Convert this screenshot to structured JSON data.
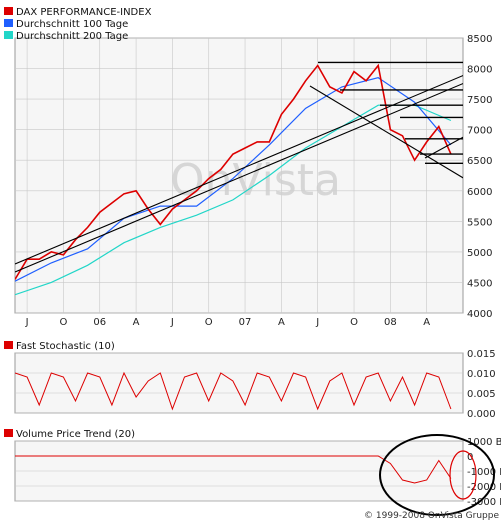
{
  "copyright": "© 1999-2008 OnVista Gruppe",
  "watermark": "OnVista",
  "colors": {
    "price": "#dd0000",
    "ma100": "#1f5fff",
    "ma200": "#22d6c8",
    "trend": "#000000",
    "grid": "#c8c8c8",
    "panel_bg": "#f6f6f6"
  },
  "chart_data": [
    {
      "type": "line",
      "title": "",
      "legend_placement": "top-left",
      "series": [
        {
          "name": "DAX PERFORMANCE-INDEX",
          "color": "#dd0000",
          "x": [
            "2005-06",
            "2005-07",
            "2005-08",
            "2005-09",
            "2005-10",
            "2005-11",
            "2005-12",
            "2006-01",
            "2006-02",
            "2006-03",
            "2006-04",
            "2006-05",
            "2006-06",
            "2006-07",
            "2006-08",
            "2006-09",
            "2006-10",
            "2006-11",
            "2006-12",
            "2007-01",
            "2007-02",
            "2007-03",
            "2007-04",
            "2007-05",
            "2007-06",
            "2007-07",
            "2007-08",
            "2007-09",
            "2007-10",
            "2007-11",
            "2007-12",
            "2008-01",
            "2008-02",
            "2008-03",
            "2008-04",
            "2008-05",
            "2008-06"
          ],
          "values": [
            4550,
            4880,
            4880,
            5000,
            4950,
            5200,
            5400,
            5650,
            5800,
            5950,
            6000,
            5700,
            5450,
            5700,
            5850,
            6000,
            6200,
            6350,
            6600,
            6700,
            6800,
            6800,
            7250,
            7500,
            7800,
            8050,
            7700,
            7600,
            7950,
            7800,
            8050,
            7000,
            6900,
            6500,
            6800,
            7050,
            6600
          ]
        },
        {
          "name": "Durchschnitt 100 Tage",
          "color": "#1f5fff",
          "x": [
            "2005-06",
            "2005-09",
            "2005-12",
            "2006-03",
            "2006-06",
            "2006-09",
            "2006-12",
            "2007-03",
            "2007-06",
            "2007-09",
            "2007-12",
            "2008-03",
            "2008-06"
          ],
          "values": [
            4520,
            4820,
            5050,
            5550,
            5750,
            5750,
            6200,
            6750,
            7350,
            7700,
            7850,
            7450,
            6750
          ]
        },
        {
          "name": "Durchschnitt 200 Tage",
          "color": "#22d6c8",
          "x": [
            "2005-06",
            "2005-09",
            "2005-12",
            "2006-03",
            "2006-06",
            "2006-09",
            "2006-12",
            "2007-03",
            "2007-06",
            "2007-09",
            "2007-12",
            "2008-03",
            "2008-06"
          ],
          "values": [
            4300,
            4500,
            4780,
            5150,
            5400,
            5600,
            5850,
            6250,
            6700,
            7050,
            7400,
            7400,
            7150
          ]
        }
      ],
      "xlabel": "",
      "ylabel": "",
      "x_tick_labels": [
        "J",
        "O",
        "06",
        "A",
        "J",
        "O",
        "07",
        "A",
        "J",
        "O",
        "08",
        "A"
      ],
      "yticks": [
        "8500",
        "8000",
        "7500",
        "7000",
        "6500",
        "6000",
        "5500",
        "5000",
        "4500",
        "4000"
      ],
      "ylim": [
        4000,
        8500
      ],
      "grid": true
    },
    {
      "type": "line",
      "title": "",
      "series": [
        {
          "name": "Fast Stochastic (10)",
          "color": "#dd0000",
          "x": [
            "2005-06",
            "2005-07",
            "2005-08",
            "2005-09",
            "2005-10",
            "2005-11",
            "2005-12",
            "2006-01",
            "2006-02",
            "2006-03",
            "2006-04",
            "2006-05",
            "2006-06",
            "2006-07",
            "2006-08",
            "2006-09",
            "2006-10",
            "2006-11",
            "2006-12",
            "2007-01",
            "2007-02",
            "2007-03",
            "2007-04",
            "2007-05",
            "2007-06",
            "2007-07",
            "2007-08",
            "2007-09",
            "2007-10",
            "2007-11",
            "2007-12",
            "2008-01",
            "2008-02",
            "2008-03",
            "2008-04",
            "2008-05",
            "2008-06"
          ],
          "values": [
            0.01,
            0.009,
            0.002,
            0.01,
            0.009,
            0.003,
            0.01,
            0.009,
            0.002,
            0.01,
            0.004,
            0.008,
            0.01,
            0.001,
            0.009,
            0.01,
            0.003,
            0.01,
            0.008,
            0.002,
            0.01,
            0.009,
            0.003,
            0.01,
            0.009,
            0.001,
            0.008,
            0.01,
            0.002,
            0.009,
            0.01,
            0.003,
            0.009,
            0.002,
            0.01,
            0.009,
            0.001
          ]
        }
      ],
      "yticks": [
        "0.015",
        "0.010",
        "0.005",
        "0.000"
      ],
      "ylim": [
        0,
        0.015
      ],
      "grid": true
    },
    {
      "type": "line",
      "title": "",
      "series": [
        {
          "name": "Volume Price Trend (20)",
          "color": "#dd0000",
          "x": [
            "2005-06",
            "2005-09",
            "2005-12",
            "2006-03",
            "2006-06",
            "2006-09",
            "2006-12",
            "2007-03",
            "2007-06",
            "2007-09",
            "2007-12",
            "2008-01",
            "2008-02",
            "2008-03",
            "2008-04",
            "2008-05",
            "2008-06"
          ],
          "values": [
            0,
            0,
            0,
            0,
            0,
            0,
            0,
            0,
            0,
            0,
            0,
            -500,
            -1600,
            -1800,
            -1600,
            -300,
            -1500
          ]
        }
      ],
      "yticks": [
        "1000 B",
        "0",
        "-1000 B",
        "-2000 B",
        "-3000 B"
      ],
      "ylim": [
        -3000,
        1000
      ],
      "grid": true
    }
  ]
}
